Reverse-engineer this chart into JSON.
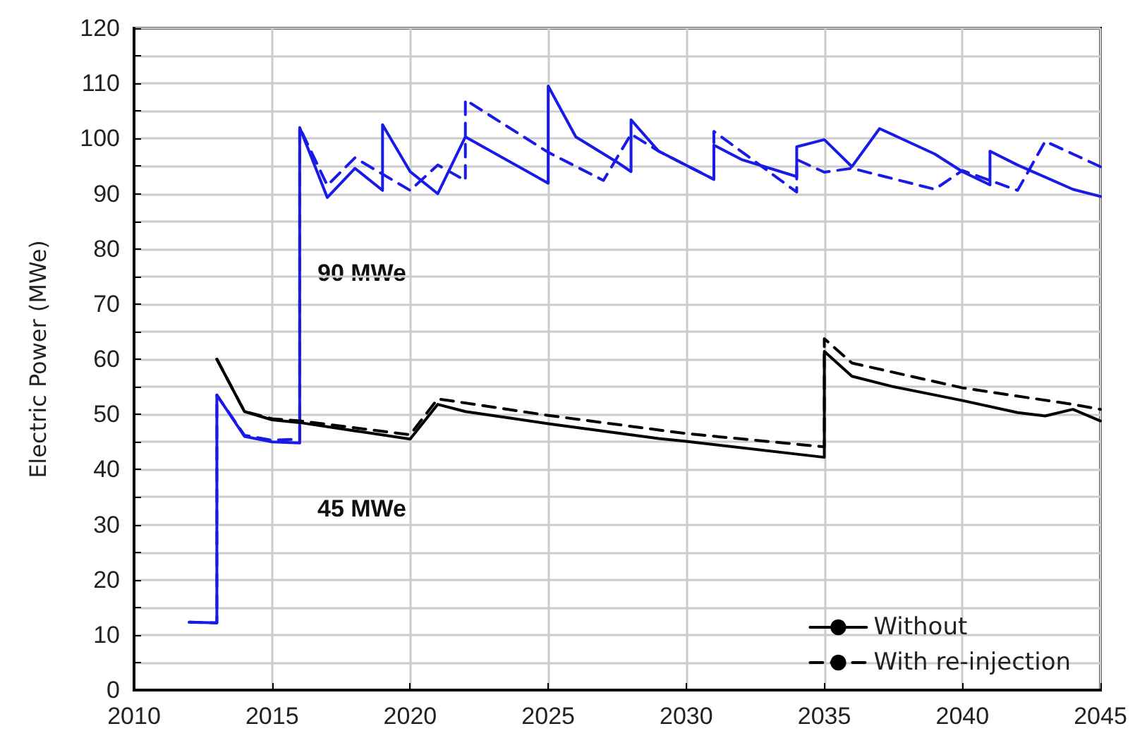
{
  "chart_data": {
    "type": "line",
    "ylabel": "Electric Power (MWe)",
    "xlim": [
      2010,
      2045
    ],
    "xticks": [
      2010,
      2015,
      2020,
      2025,
      2030,
      2035,
      2040,
      2045
    ],
    "ylim": [
      0,
      120
    ],
    "yticks": [
      0,
      {
        "value": 5,
        "label": null
      },
      10,
      {
        "value": 15,
        "label": null
      },
      20,
      {
        "value": 25,
        "label": null
      },
      30,
      {
        "value": 35,
        "label": null
      },
      40,
      {
        "value": 45,
        "label": null
      },
      50,
      {
        "value": 55,
        "label": null
      },
      60,
      {
        "value": 65,
        "label": null
      },
      70,
      {
        "value": 75,
        "label": null
      },
      80,
      {
        "value": 85,
        "label": null
      },
      90,
      {
        "value": 95,
        "label": null
      },
      100,
      {
        "value": 105,
        "label": null
      },
      110,
      {
        "value": 115,
        "label": null
      },
      120
    ],
    "grid": true,
    "legend": "bottom right",
    "marker": "none",
    "annotations": [
      "90 MWe",
      "45 MWe"
    ],
    "series": [
      {
        "color": "#1a1ae6",
        "line_style": "solid",
        "x": [
          2012,
          2013,
          2013,
          2014,
          2015,
          2016,
          2016,
          2017,
          2018,
          2019,
          2019,
          2020,
          2021,
          2022,
          2025,
          2025,
          2026,
          2027.5,
          2028,
          2028,
          2029,
          2031,
          2031,
          2032,
          2034,
          2034,
          2035,
          2036,
          2037,
          2039,
          2040,
          2041,
          2041,
          2042,
          2044,
          2045
        ],
        "values": [
          12.3,
          12.2,
          53.5,
          46,
          45,
          44.8,
          102,
          89.3,
          94.6,
          90.6,
          102.5,
          94,
          90,
          100.3,
          91.9,
          109.5,
          100.3,
          95.7,
          94,
          103.4,
          97.7,
          92.6,
          98.8,
          96.2,
          93.1,
          98.5,
          99.8,
          94.9,
          101.8,
          97.2,
          94,
          91.6,
          97.7,
          95.2,
          90.8,
          89.5
        ]
      },
      {
        "color": "#1a1ae6",
        "line_style": "dashed",
        "x": [
          2012,
          2013,
          2013,
          2014,
          2015,
          2016,
          2016,
          2017,
          2018,
          2020,
          2021,
          2022,
          2022,
          2025,
          2027,
          2028,
          2029,
          2031,
          2031,
          2034,
          2034,
          2035,
          2036,
          2039,
          2040,
          2042,
          2043,
          2045
        ],
        "values": [
          12.3,
          12.2,
          53.5,
          46.2,
          45.3,
          45.5,
          102,
          91.5,
          96.5,
          90.6,
          95.2,
          92.4,
          107,
          97.5,
          92.4,
          100.8,
          97.7,
          92.6,
          101.3,
          90.3,
          96.2,
          93.9,
          94.6,
          90.8,
          94.2,
          90.6,
          99.5,
          94.9
        ]
      },
      {
        "name": "Without",
        "color": "#000000",
        "line_style": "solid",
        "x": [
          2013,
          2014,
          2015,
          2016,
          2020,
          2021,
          2022,
          2025,
          2029,
          2030,
          2035,
          2035,
          2036,
          2037.5,
          2040,
          2042,
          2043,
          2044,
          2045
        ],
        "values": [
          60,
          50.5,
          49,
          48.5,
          45.5,
          51.8,
          50.5,
          48.3,
          45.6,
          45.1,
          42.2,
          61.4,
          56.9,
          55,
          52.5,
          50.3,
          49.7,
          50.9,
          48.8
        ]
      },
      {
        "name": "With re-injection",
        "color": "#000000",
        "line_style": "dashed",
        "x": [
          2013,
          2014,
          2015,
          2016,
          2020,
          2021,
          2025,
          2030,
          2035,
          2035,
          2036,
          2040,
          2044,
          2045
        ],
        "values": [
          60,
          50.5,
          49.2,
          48.8,
          46.3,
          52.8,
          49.8,
          46.5,
          44.1,
          63.7,
          59.3,
          54.8,
          51.8,
          50.9
        ]
      }
    ]
  }
}
